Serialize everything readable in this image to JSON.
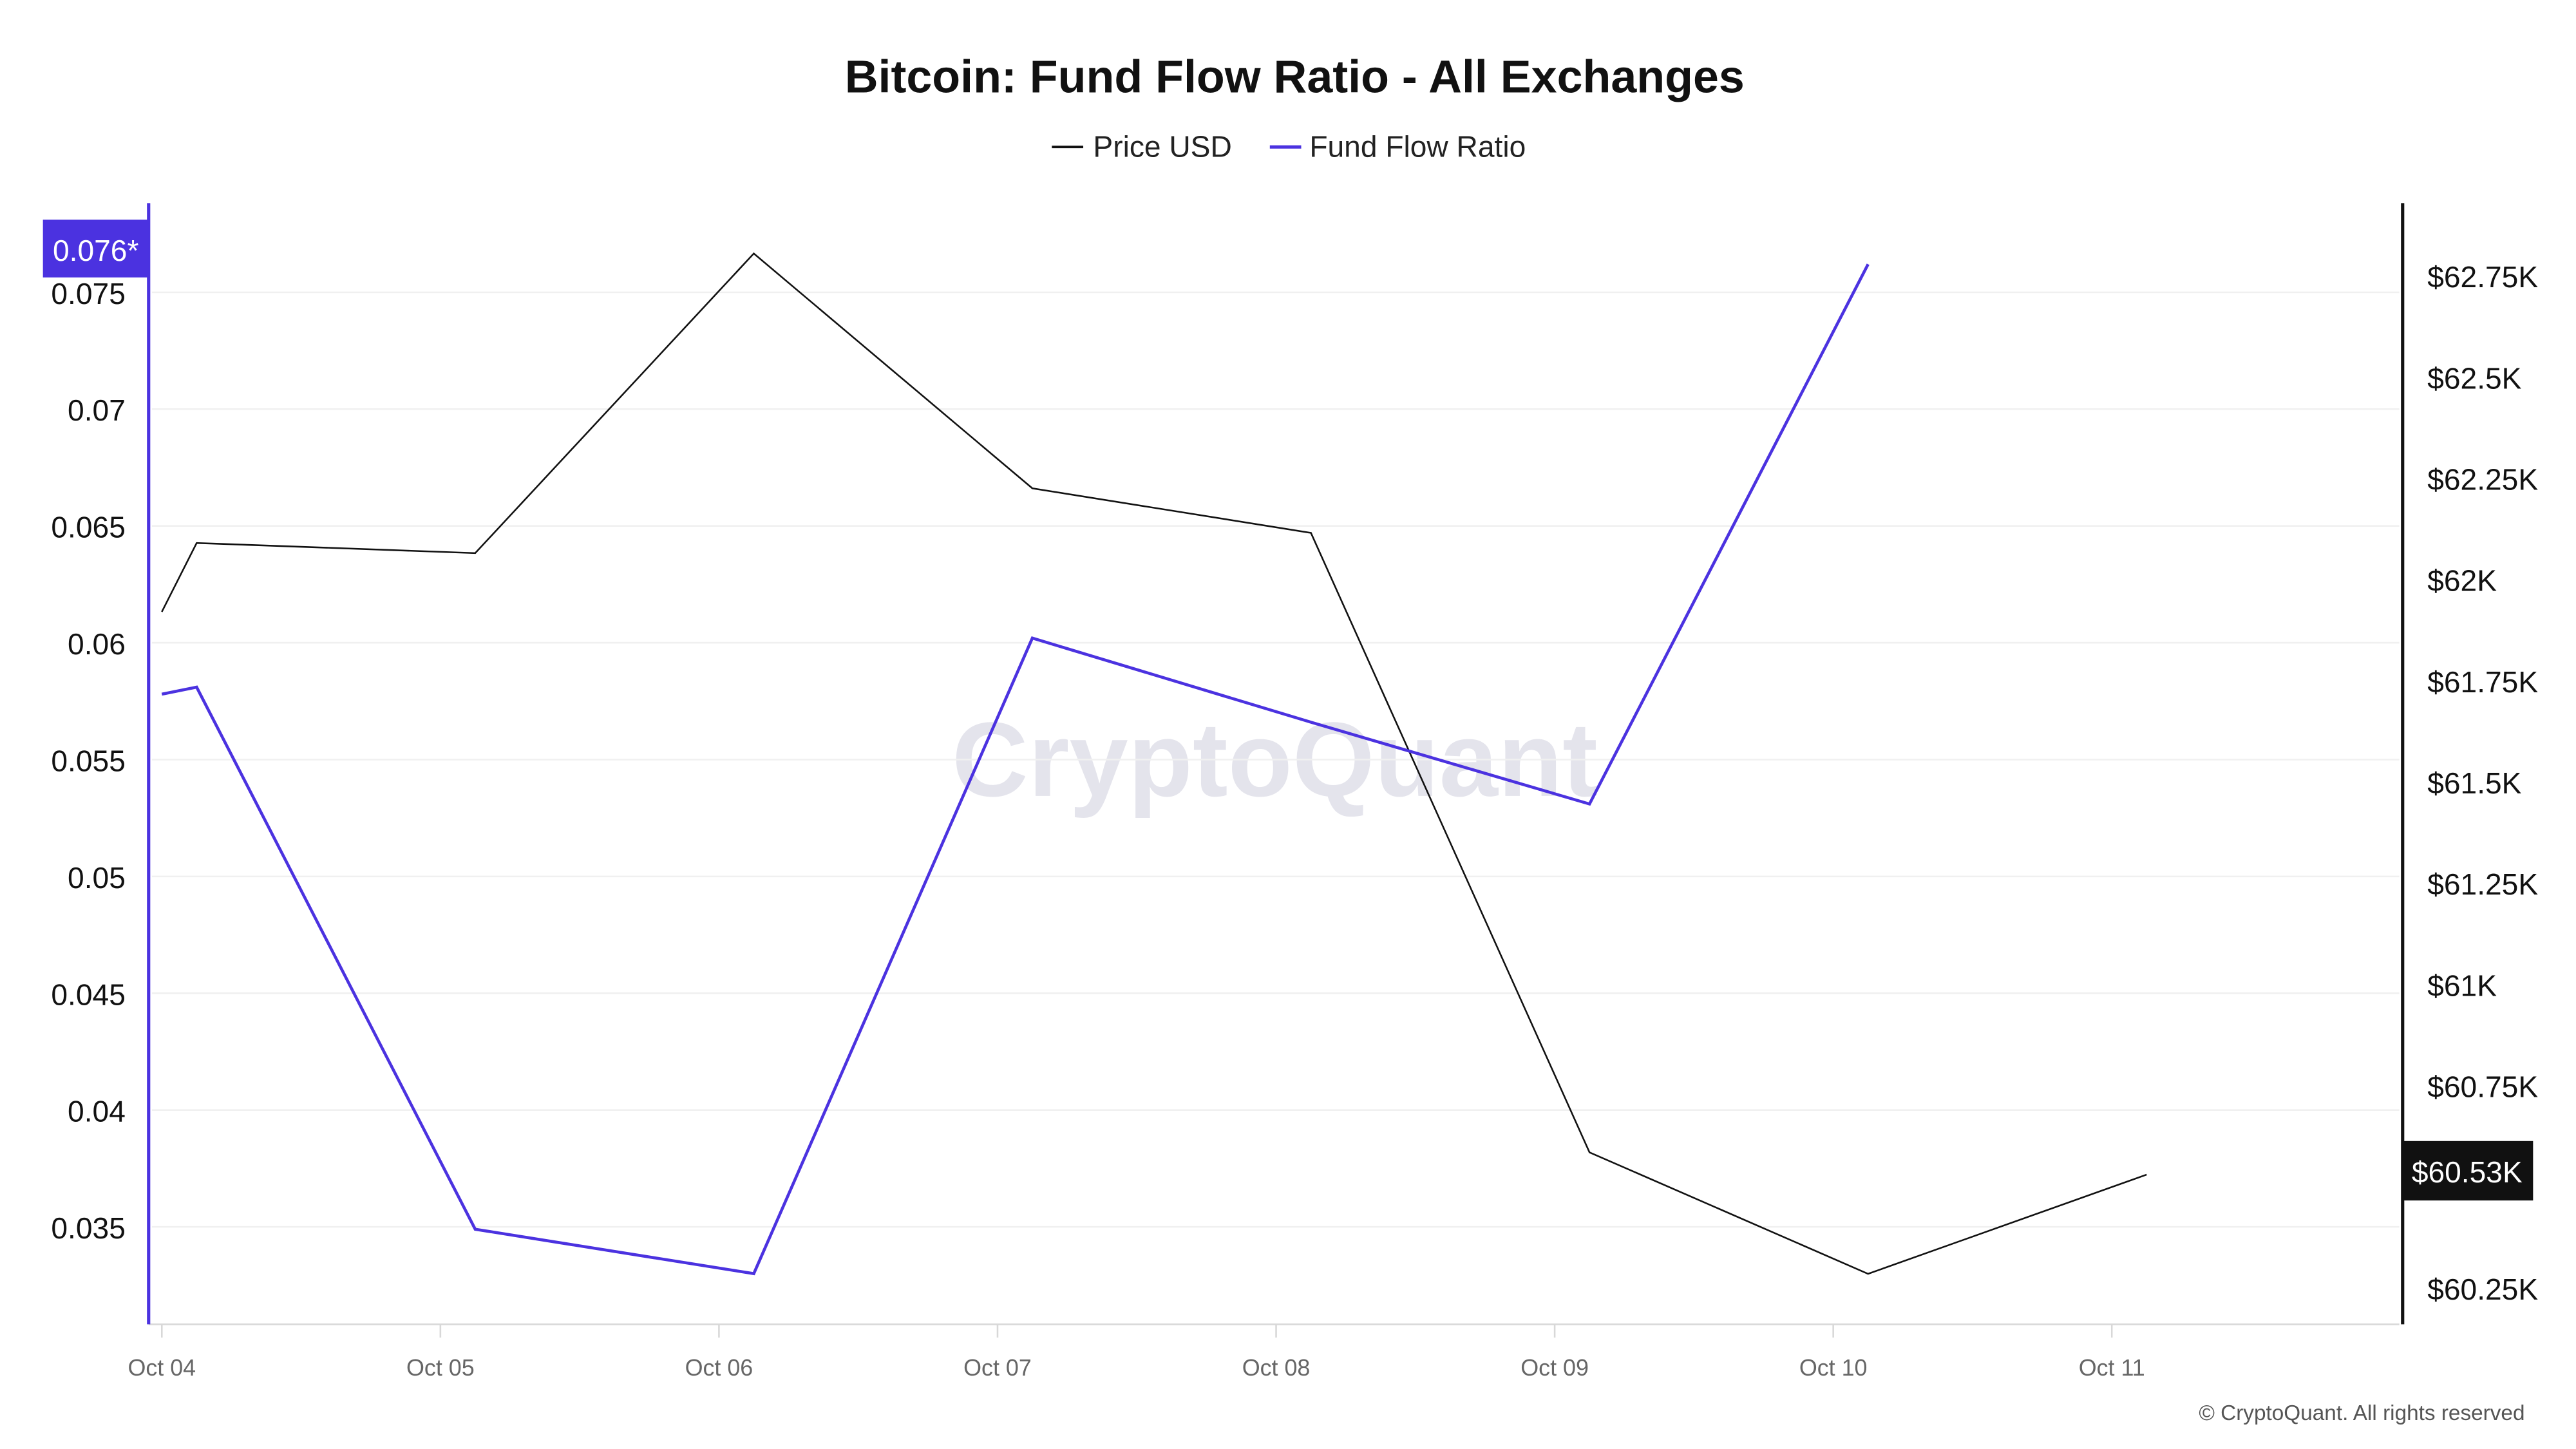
{
  "chart_data": {
    "type": "line",
    "title": "Bitcoin: Fund Flow Ratio - All Exchanges",
    "legend": [
      {
        "name": "Price USD",
        "color": "#111111"
      },
      {
        "name": "Fund Flow Ratio",
        "color": "#4b32e0"
      }
    ],
    "legend_placement": "top-center",
    "x_ticks": [
      "Oct 04",
      "Oct 05",
      "Oct 06",
      "Oct 07",
      "Oct 08",
      "Oct 09",
      "Oct 10",
      "Oct 11"
    ],
    "x_unit": "days since Oct 04",
    "left_axis": {
      "ticks": [
        0.075,
        0.07,
        0.065,
        0.06,
        0.055,
        0.05,
        0.045,
        0.04,
        0.035
      ],
      "tick_labels": [
        "0.075",
        "0.07",
        "0.065",
        "0.06",
        "0.055",
        "0.05",
        "0.045",
        "0.04",
        "0.035"
      ],
      "current_label": "0.076*",
      "color": "#4b32e0"
    },
    "right_axis": {
      "ticks": [
        62750,
        62500,
        62250,
        62000,
        61750,
        61500,
        61250,
        61000,
        60750,
        60250
      ],
      "tick_labels": [
        "$62.75K",
        "$62.5K",
        "$62.25K",
        "$62K",
        "$61.75K",
        "$61.5K",
        "$61.25K",
        "$61K",
        "$60.75K",
        "$60.25K"
      ],
      "current_label": "$60.53K",
      "color": "#111111"
    },
    "series": [
      {
        "name": "Price USD",
        "axis": "right",
        "x": [
          0,
          0.125,
          1.125,
          2.125,
          3.125,
          4.125,
          5.125,
          6.125,
          7.125
        ],
        "values": [
          61920,
          62090,
          62065,
          62805,
          62225,
          62115,
          60585,
          60285,
          60530
        ]
      },
      {
        "name": "Fund Flow Ratio",
        "axis": "left",
        "x": [
          0,
          0.125,
          1.125,
          2.125,
          3.125,
          4.125,
          5.125,
          6.125
        ],
        "values": [
          0.0578,
          0.0581,
          0.0349,
          0.033,
          0.0602,
          0.0566,
          0.0531,
          0.0762
        ]
      }
    ],
    "grid": true
  },
  "watermark": "CryptoQuant",
  "footer": "© CryptoQuant. All rights reserved"
}
